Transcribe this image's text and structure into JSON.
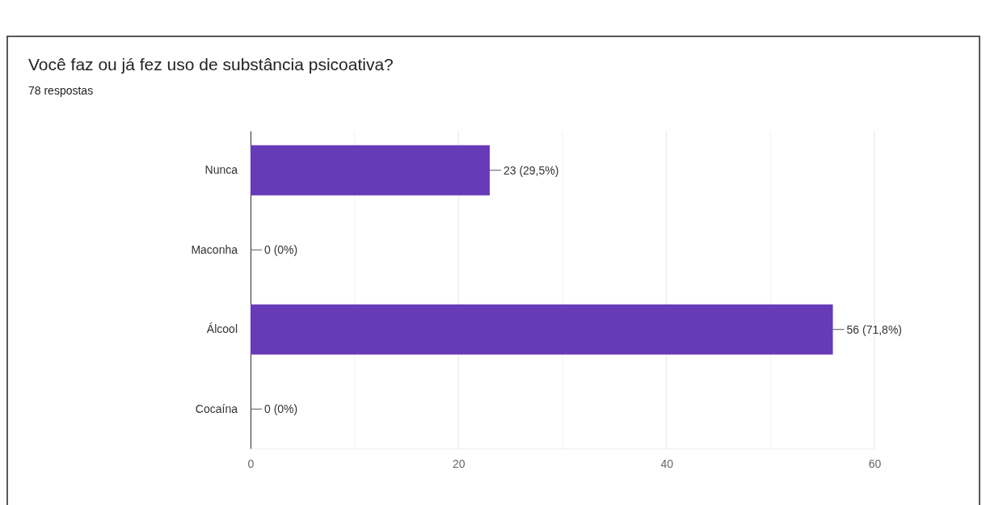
{
  "chart_data": {
    "type": "bar",
    "orientation": "horizontal",
    "title": "Você faz ou já fez uso de substância psicoativa?",
    "subtitle": "78 respostas",
    "categories": [
      "Nunca",
      "Maconha",
      "Álcool",
      "Cocaína"
    ],
    "values": [
      23,
      0,
      56,
      0
    ],
    "color": "#673ab7",
    "value_labels": [
      "23 (29,5%)",
      "0 (0%)",
      "56 (71,8%)",
      "0 (0%)"
    ],
    "xlim": [
      0,
      60
    ],
    "xticks": [
      0,
      {
        "value": 10,
        "label": null
      },
      20,
      {
        "value": 30,
        "label": null
      },
      40,
      {
        "value": 50,
        "label": null
      },
      60
    ],
    "grid": "x"
  }
}
